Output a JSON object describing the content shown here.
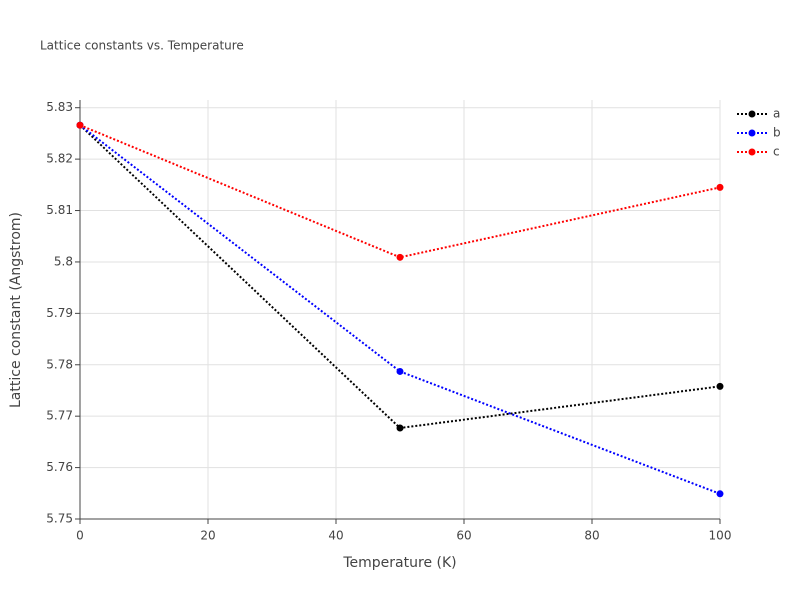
{
  "chart_data": {
    "type": "line",
    "title": "Lattice constants vs. Temperature",
    "x_label": "Temperature (K)",
    "y_label": "Lattice constant (Angstrom)",
    "x": [
      0,
      50,
      100
    ],
    "series": [
      {
        "name": "a",
        "color": "#000000",
        "values": [
          5.8266,
          5.7677,
          5.7758
        ]
      },
      {
        "name": "b",
        "color": "#0000ff",
        "values": [
          5.8266,
          5.7787,
          5.7549
        ]
      },
      {
        "name": "c",
        "color": "#ff0000",
        "values": [
          5.8266,
          5.8009,
          5.8145
        ]
      }
    ],
    "xlim": [
      0,
      100
    ],
    "xticks": [
      0,
      20,
      40,
      60,
      80,
      100
    ],
    "ylim": [
      5.75,
      5.8315
    ],
    "yticks": [
      5.75,
      5.76,
      5.77,
      5.78,
      5.79,
      5.8,
      5.81,
      5.82,
      5.83
    ],
    "grid": true,
    "legend": "top-right"
  }
}
